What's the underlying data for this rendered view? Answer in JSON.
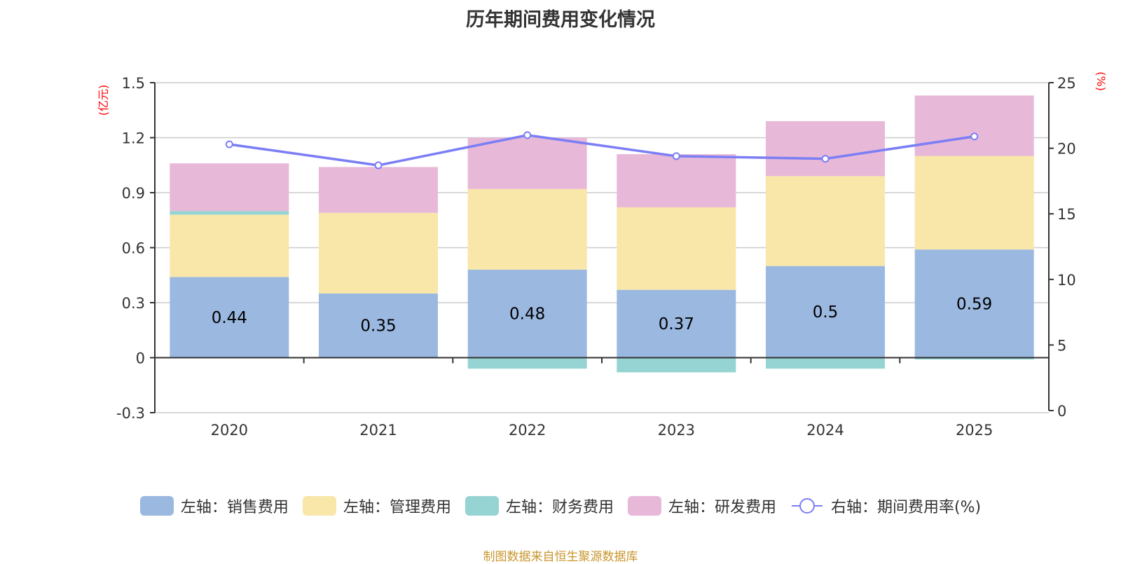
{
  "title": "历年期间费用变化情况",
  "source": "制图数据来自恒生聚源数据库",
  "colors": {
    "sales": "#9bb8e1",
    "admin": "#f8e7a9",
    "finance": "#96d4d4",
    "rnd": "#e8b8d8",
    "rate": "#7b7ef5"
  },
  "legend": [
    {
      "label": "左轴：销售费用",
      "type": "box",
      "color_key": "sales"
    },
    {
      "label": "左轴：管理费用",
      "type": "box",
      "color_key": "admin"
    },
    {
      "label": "左轴：财务费用",
      "type": "box",
      "color_key": "finance"
    },
    {
      "label": "左轴：研发费用",
      "type": "box",
      "color_key": "rnd"
    },
    {
      "label": "右轴：期间费用率(%)",
      "type": "line",
      "color_key": "rate"
    }
  ],
  "chart_data": {
    "type": "bar",
    "stacked": true,
    "title": "历年期间费用变化情况",
    "categories": [
      "2020",
      "2021",
      "2022",
      "2023",
      "2024",
      "2025"
    ],
    "y_left": {
      "label": "(亿元)",
      "range": [
        -0.3,
        1.5
      ],
      "ticks": [
        "1.5",
        "1.2",
        "0.9",
        "0.6",
        "0.3",
        "0",
        "-0.3"
      ]
    },
    "y_right": {
      "label": "(%)",
      "range": [
        0,
        25
      ],
      "ticks": [
        "25",
        "20",
        "15",
        "10",
        "5",
        "0"
      ]
    },
    "grid": true,
    "legend_position": "bottom",
    "series": [
      {
        "name": "左轴：销售费用",
        "axis": "left",
        "type": "bar",
        "values": [
          0.44,
          0.35,
          0.48,
          0.37,
          0.5,
          0.59
        ],
        "labels": [
          "0.44",
          "0.35",
          "0.48",
          "0.37",
          "0.5",
          "0.59"
        ]
      },
      {
        "name": "左轴：管理费用",
        "axis": "left",
        "type": "bar",
        "values": [
          0.34,
          0.44,
          0.44,
          0.45,
          0.49,
          0.51
        ]
      },
      {
        "name": "左轴：财务费用",
        "axis": "left",
        "type": "bar",
        "values": [
          0.02,
          0.0,
          -0.06,
          -0.08,
          -0.06,
          -0.01
        ]
      },
      {
        "name": "左轴：研发费用",
        "axis": "left",
        "type": "bar",
        "values": [
          0.26,
          0.25,
          0.28,
          0.29,
          0.3,
          0.33
        ]
      },
      {
        "name": "右轴：期间费用率(%)",
        "axis": "right",
        "type": "line",
        "values": [
          20.3,
          18.7,
          21.0,
          19.4,
          19.2,
          20.9
        ]
      }
    ]
  }
}
